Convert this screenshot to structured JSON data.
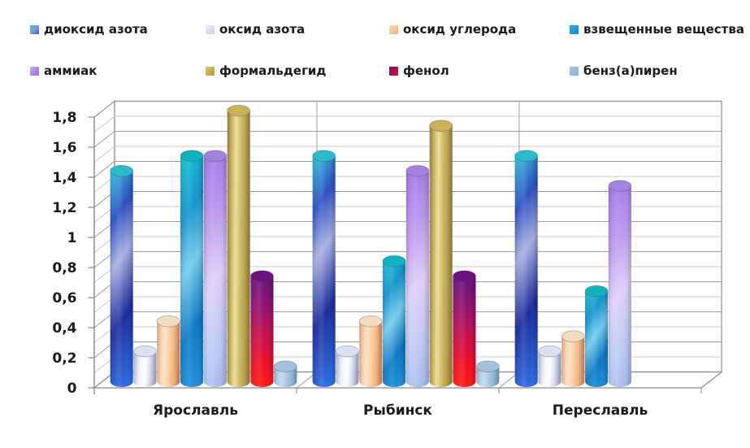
{
  "page": {
    "background": "#ffffff"
  },
  "chart_data": {
    "type": "bar",
    "style": "3d-cylinder",
    "title": "",
    "xlabel": "",
    "ylabel": "",
    "categories": [
      "Ярославль",
      "Рыбинск",
      "Переславль"
    ],
    "series": [
      {
        "name": "диоксид азота",
        "values": [
          1.4,
          1.5,
          1.5
        ],
        "direction": "diagonal",
        "colors": [
          "#2FC7DD",
          "#2E4FC0",
          "#A9B0E0",
          "#1B2C9C",
          "#2F72EA"
        ],
        "stops": [
          0,
          0.22,
          0.42,
          0.68,
          1
        ],
        "cap": "#2ABCCB",
        "swatch": [
          "#3EC8DA",
          "#8B96D5",
          "#2E5FD8"
        ]
      },
      {
        "name": "оксид азота",
        "values": [
          0.2,
          0.2,
          0.2
        ],
        "direction": "horizontal",
        "colors": [
          "#B7C0DD",
          "#F2F4FA",
          "#FDFDFE",
          "#AFBAD6"
        ],
        "stops": [
          0,
          0.32,
          0.55,
          1
        ],
        "cap": "#DCE1F1",
        "swatch": [
          "#EDEFF8",
          "#C7CFE8"
        ]
      },
      {
        "name": "оксид углерода",
        "values": [
          0.4,
          0.4,
          0.3
        ],
        "direction": "horizontal",
        "colors": [
          "#F2AF7E",
          "#FBE2C2",
          "#F8C99C",
          "#E8975F"
        ],
        "stops": [
          0,
          0.35,
          0.62,
          1
        ],
        "cap": "#F4DCC1",
        "swatch": [
          "#FBDFC0",
          "#F2AC79"
        ]
      },
      {
        "name": "взвещенные вещества",
        "values": [
          1.5,
          0.8,
          0.6
        ],
        "direction": "diagonal",
        "colors": [
          "#12C4D0",
          "#1493CE",
          "#74CCEA",
          "#0C79C4",
          "#1E90DC"
        ],
        "stops": [
          0,
          0.26,
          0.48,
          0.74,
          1
        ],
        "cap": "#10B2BE",
        "swatch": [
          "#1FB0DF",
          "#128AD0"
        ]
      },
      {
        "name": "аммиак",
        "values": [
          1.5,
          1.4,
          1.3
        ],
        "direction": "diagonal",
        "colors": [
          "#9B70E4",
          "#BD9BEE",
          "#DFCFF8",
          "#BCC9F4",
          "#A6BAEC"
        ],
        "stops": [
          0,
          0.3,
          0.54,
          0.8,
          1
        ],
        "cap": "#A482E0",
        "swatch": [
          "#C5A8F0",
          "#9A70E0"
        ]
      },
      {
        "name": "формальдегид",
        "values": [
          1.8,
          1.7,
          0
        ],
        "direction": "horizontal",
        "colors": [
          "#9A8435",
          "#C8B159",
          "#EAD98E",
          "#CDB765",
          "#AA8F3C"
        ],
        "stops": [
          0,
          0.22,
          0.4,
          0.62,
          1
        ],
        "cap": "#C9B257",
        "swatch": [
          "#D9C878",
          "#B69939"
        ]
      },
      {
        "name": "фенол",
        "values": [
          0.7,
          0.7,
          0
        ],
        "direction": "vertical",
        "colors": [
          "#64107E",
          "#92106E",
          "#C40E4E",
          "#EE0E24",
          "#FC1B10"
        ],
        "stops": [
          0,
          0.28,
          0.52,
          0.78,
          1
        ],
        "cap": "#6E1180",
        "swatch": [
          "#70127E",
          "#E81020"
        ]
      },
      {
        "name": "бенз(а)пирен",
        "values": [
          0.1,
          0.1,
          0
        ],
        "direction": "horizontal",
        "colors": [
          "#8FB4D6",
          "#C2D8EC",
          "#A9C8E2",
          "#7FA9CE"
        ],
        "stops": [
          0,
          0.35,
          0.6,
          1
        ],
        "cap": "#A3C1DD",
        "swatch": [
          "#A5C5E2",
          "#8FB2D4"
        ]
      }
    ],
    "y_axis": {
      "min": 0,
      "max": 1.8,
      "major_step": 0.2,
      "minor_step": 0.1,
      "decimal_separator": ",",
      "tick_labels": [
        "0",
        "0,2",
        "0,4",
        "0,6",
        "0,8",
        "1",
        "1,2",
        "1,4",
        "1,6",
        "1,8"
      ]
    },
    "legend_position": "top",
    "grid": true
  },
  "colors": {
    "background": "#ffffff",
    "grid_minor": "#c9c9c9",
    "grid_major": "#9c9c9c",
    "wall_edge": "#8a8a8a",
    "axis_line": "#808080",
    "text": "#1a1a1a"
  }
}
